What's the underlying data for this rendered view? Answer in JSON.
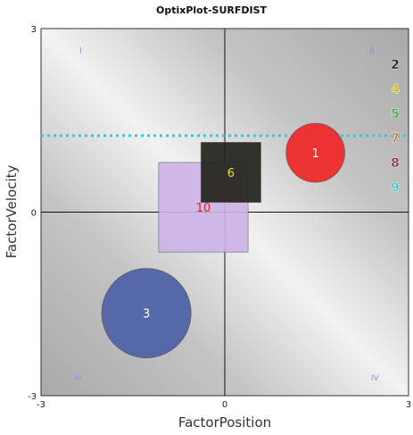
{
  "chart_data": {
    "type": "bubble",
    "title": "OptixPlot-SURFDIST",
    "xlabel": "FactorPosition",
    "ylabel": "FactorVelocity",
    "xlim": [
      -3,
      3
    ],
    "ylim": [
      -3,
      3
    ],
    "x_ticks": [
      "-3",
      "0",
      "3"
    ],
    "y_ticks": [
      "-3",
      "0",
      "3"
    ],
    "quadrants": [
      "I",
      "II",
      "III",
      "IV"
    ],
    "reference_line": {
      "y": 1.25,
      "color": "#3cc6cf"
    },
    "bubbles": [
      {
        "label": "1",
        "shape": "circle",
        "x": 1.48,
        "y": 0.97,
        "size": 0.48,
        "color": "#ee2a2a",
        "label_color": "#ffffff"
      },
      {
        "label": "3",
        "shape": "circle",
        "x": -1.28,
        "y": -1.65,
        "size": 0.73,
        "color": "#5163a6",
        "label_color": "#ffffff"
      },
      {
        "label": "10",
        "shape": "square",
        "x": -0.35,
        "y": 0.08,
        "size": 0.73,
        "color": "#cdb2e6",
        "label_color": "#e02020"
      },
      {
        "label": "6",
        "shape": "square",
        "x": 0.1,
        "y": 0.65,
        "size": 0.49,
        "color": "#1f1f1a",
        "label_color": "#f0e020"
      }
    ],
    "legend": {
      "placement": "right",
      "items": [
        {
          "label": "2",
          "color": "#111111"
        },
        {
          "label": "4",
          "color": "#d4b800"
        },
        {
          "label": "5",
          "color": "#3aa84a"
        },
        {
          "label": "7",
          "color": "#e07020"
        },
        {
          "label": "8",
          "color": "#7a2a40"
        },
        {
          "label": "9",
          "color": "#3bbfc8"
        }
      ]
    },
    "grid": false
  }
}
